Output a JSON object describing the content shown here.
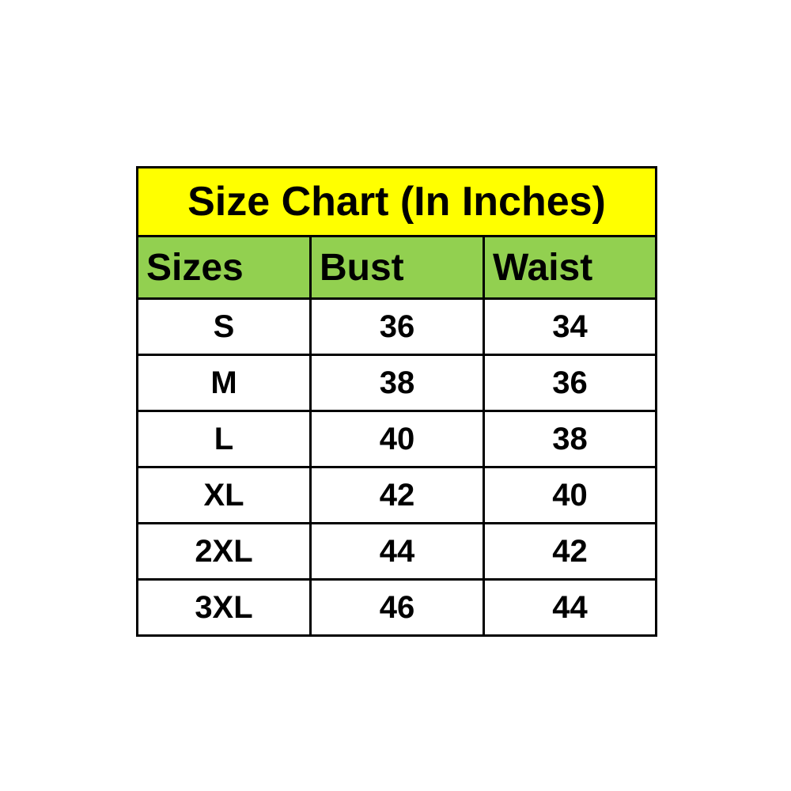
{
  "title": "Size Chart (In Inches)",
  "columns": {
    "sizes": "Sizes",
    "bust": "Bust",
    "waist": "Waist"
  },
  "rows": [
    {
      "size": "S",
      "bust": "36",
      "waist": "34"
    },
    {
      "size": "M",
      "bust": "38",
      "waist": "36"
    },
    {
      "size": "L",
      "bust": "40",
      "waist": "38"
    },
    {
      "size": "XL",
      "bust": "42",
      "waist": "40"
    },
    {
      "size": "2XL",
      "bust": "44",
      "waist": "42"
    },
    {
      "size": "3XL",
      "bust": "46",
      "waist": "44"
    }
  ],
  "colors": {
    "title_background": "#FFFF00",
    "header_background": "#92D050",
    "border": "#000000",
    "text": "#000000"
  },
  "chart_data": {
    "type": "table",
    "title": "Size Chart (In Inches)",
    "columns": [
      "Sizes",
      "Bust",
      "Waist"
    ],
    "rows": [
      [
        "S",
        36,
        34
      ],
      [
        "M",
        38,
        36
      ],
      [
        "L",
        40,
        38
      ],
      [
        "XL",
        42,
        40
      ],
      [
        "2XL",
        44,
        42
      ],
      [
        "3XL",
        46,
        44
      ]
    ],
    "units": "inches",
    "layout": {
      "grid": true,
      "title_position": "top"
    }
  }
}
